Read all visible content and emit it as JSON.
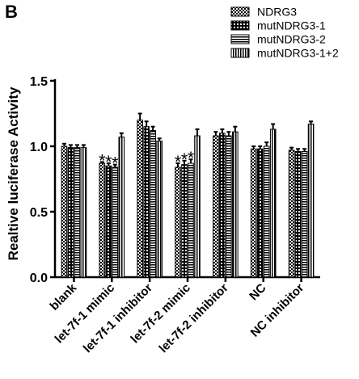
{
  "panel_label": "B",
  "chart_data": {
    "type": "bar",
    "title": "",
    "xlabel": "",
    "ylabel": "Realtive luciferase Activity",
    "ylim": [
      0,
      1.5
    ],
    "yticks": [
      "0.0",
      "0.5",
      "1.0",
      "1.5"
    ],
    "categories": [
      "blank",
      "let-7f-1 mimic",
      "let-7f-1 inhibitor",
      "let-7f-2 mimic",
      "let-7f-2 inhibitor",
      "NC",
      "NC inhibitor"
    ],
    "series": [
      {
        "name": "NDRG3",
        "pattern": "checker",
        "values": [
          1.0,
          0.87,
          1.2,
          0.84,
          1.08,
          0.98,
          0.97
        ],
        "errors": [
          0.02,
          0.01,
          0.05,
          0.03,
          0.03,
          0.02,
          0.02
        ]
      },
      {
        "name": "mutNDRG3-1",
        "pattern": "dots",
        "values": [
          0.99,
          0.85,
          1.15,
          0.86,
          1.1,
          0.98,
          0.96
        ],
        "errors": [
          0.02,
          0.02,
          0.04,
          0.03,
          0.03,
          0.02,
          0.02
        ]
      },
      {
        "name": "mutNDRG3-2",
        "pattern": "hstripes",
        "values": [
          0.99,
          0.84,
          1.12,
          0.87,
          1.08,
          1.0,
          0.96
        ],
        "errors": [
          0.02,
          0.02,
          0.03,
          0.03,
          0.03,
          0.03,
          0.02
        ]
      },
      {
        "name": "mutNDRG3-1+2",
        "pattern": "vstripes",
        "values": [
          0.99,
          1.07,
          1.04,
          1.08,
          1.11,
          1.13,
          1.17
        ],
        "errors": [
          0.02,
          0.03,
          0.02,
          0.05,
          0.04,
          0.04,
          0.02
        ]
      }
    ],
    "annotations": [
      {
        "category": 1,
        "series": 0,
        "text": "*"
      },
      {
        "category": 1,
        "series": 1,
        "text": "*"
      },
      {
        "category": 1,
        "series": 2,
        "text": "*"
      },
      {
        "category": 3,
        "series": 0,
        "text": "*"
      },
      {
        "category": 3,
        "series": 1,
        "text": "*"
      },
      {
        "category": 3,
        "series": 2,
        "text": "*"
      }
    ],
    "legend_position": "top-right",
    "grid": false
  }
}
